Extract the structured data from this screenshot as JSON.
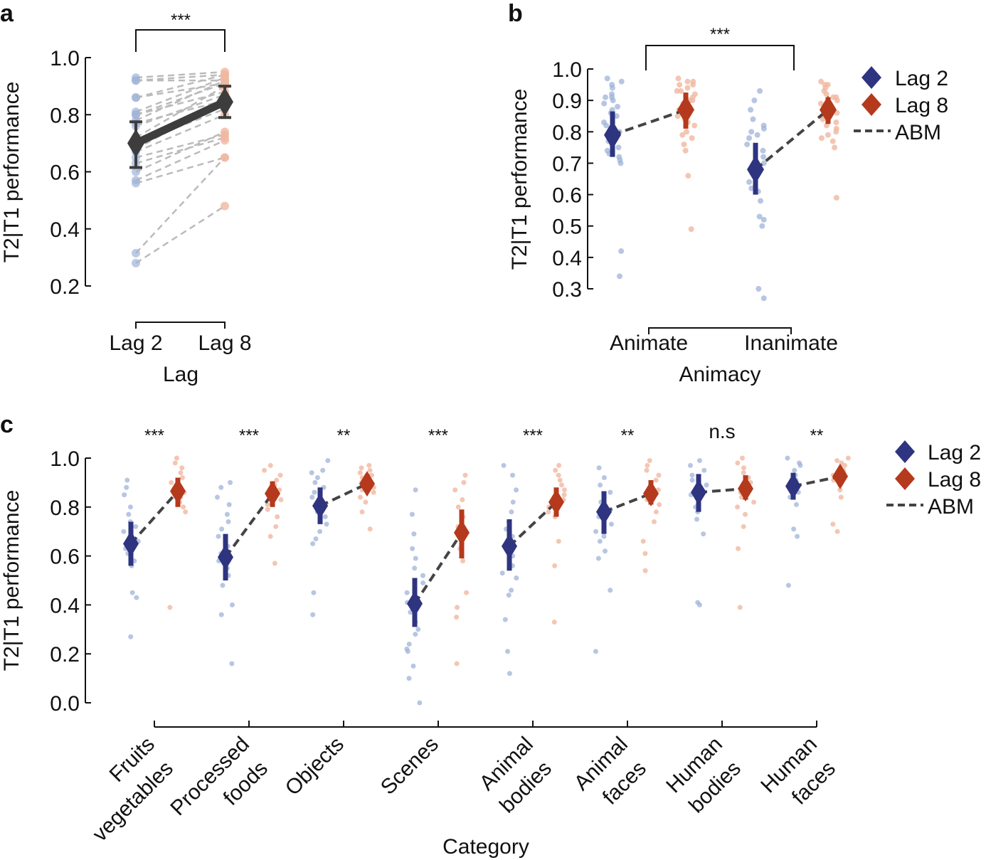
{
  "figure": {
    "width": 1386,
    "height": 1209
  },
  "colors": {
    "lag2": "#2e3480",
    "lag8": "#b5391c",
    "lag2_light": "#9fb3d8",
    "lag8_light": "#f0b8a0",
    "abm": "#444444",
    "avg": "#3d3d3d",
    "subject_line": "#bbbbbb"
  },
  "chart_data": [
    {
      "panel": "a",
      "type": "line",
      "ylabel": "T2|T1 performance",
      "xlabel": "Lag",
      "categories": [
        "Lag 2",
        "Lag 8"
      ],
      "ylim": [
        0.2,
        1.0
      ],
      "yticks": [
        0.2,
        0.4,
        0.6,
        0.8,
        1.0
      ],
      "ytick_labels": [
        "0.2",
        "0.4",
        "0.6",
        "0.8",
        "1.0"
      ],
      "significance": "***",
      "mean": {
        "values": [
          0.7,
          0.845
        ],
        "err_low": [
          0.615,
          0.79
        ],
        "err_high": [
          0.775,
          0.9
        ]
      },
      "subjects": [
        [
          0.93,
          0.95
        ],
        [
          0.92,
          0.94
        ],
        [
          0.92,
          0.92
        ],
        [
          0.86,
          0.94
        ],
        [
          0.86,
          0.91
        ],
        [
          0.81,
          0.93
        ],
        [
          0.8,
          0.91
        ],
        [
          0.8,
          0.88
        ],
        [
          0.78,
          0.92
        ],
        [
          0.77,
          0.85
        ],
        [
          0.76,
          0.87
        ],
        [
          0.72,
          0.9
        ],
        [
          0.7,
          0.82
        ],
        [
          0.68,
          0.85
        ],
        [
          0.67,
          0.8
        ],
        [
          0.65,
          0.73
        ],
        [
          0.63,
          0.72
        ],
        [
          0.6,
          0.74
        ],
        [
          0.57,
          0.71
        ],
        [
          0.56,
          0.65
        ],
        [
          0.315,
          0.65
        ],
        [
          0.28,
          0.48
        ]
      ]
    },
    {
      "panel": "b",
      "type": "scatter",
      "ylabel": "T2|T1 performance",
      "xlabel": "Animacy",
      "categories": [
        "Animate",
        "Inanimate"
      ],
      "ylim": [
        0.3,
        1.0
      ],
      "yticks": [
        0.3,
        0.4,
        0.5,
        0.6,
        0.7,
        0.8,
        0.9,
        1.0
      ],
      "ytick_labels": [
        "0.3",
        "0.4",
        "0.5",
        "0.6",
        "0.7",
        "0.8",
        "0.9",
        "1.0"
      ],
      "significance": "***",
      "legend": [
        "Lag 2",
        "Lag 8",
        "ABM"
      ],
      "series": [
        {
          "name": "Lag 2",
          "values": [
            0.79,
            0.68
          ],
          "err_low": [
            0.72,
            0.6
          ],
          "err_high": [
            0.865,
            0.765
          ]
        },
        {
          "name": "Lag 8",
          "values": [
            0.87,
            0.87
          ],
          "err_low": [
            0.81,
            0.825
          ],
          "err_high": [
            0.925,
            0.91
          ]
        }
      ],
      "abm": [
        [
          0.79,
          0.87
        ],
        [
          0.68,
          0.87
        ]
      ],
      "points_lag2": [
        [
          0.97,
          0.96,
          0.95,
          0.94,
          0.92,
          0.91,
          0.91,
          0.9,
          0.89,
          0.88,
          0.87,
          0.86,
          0.85,
          0.83,
          0.82,
          0.8,
          0.79,
          0.78,
          0.77,
          0.76,
          0.75,
          0.74,
          0.73,
          0.72,
          0.71,
          0.7,
          0.42,
          0.34
        ],
        [
          0.93,
          0.9,
          0.87,
          0.84,
          0.82,
          0.81,
          0.8,
          0.79,
          0.78,
          0.76,
          0.74,
          0.72,
          0.7,
          0.68,
          0.66,
          0.64,
          0.62,
          0.61,
          0.58,
          0.53,
          0.52,
          0.5,
          0.3,
          0.27
        ]
      ],
      "points_lag8": [
        [
          0.97,
          0.96,
          0.96,
          0.95,
          0.95,
          0.94,
          0.93,
          0.93,
          0.92,
          0.91,
          0.9,
          0.9,
          0.89,
          0.88,
          0.87,
          0.86,
          0.85,
          0.84,
          0.83,
          0.82,
          0.8,
          0.79,
          0.78,
          0.76,
          0.74,
          0.66,
          0.49
        ],
        [
          0.96,
          0.95,
          0.95,
          0.94,
          0.93,
          0.92,
          0.91,
          0.91,
          0.9,
          0.89,
          0.88,
          0.87,
          0.86,
          0.85,
          0.84,
          0.83,
          0.82,
          0.81,
          0.8,
          0.79,
          0.78,
          0.77,
          0.75,
          0.59
        ]
      ]
    },
    {
      "panel": "c",
      "type": "scatter",
      "ylabel": "T2|T1 performance",
      "xlabel": "Category",
      "ylim": [
        0.0,
        1.0
      ],
      "yticks": [
        0.0,
        0.2,
        0.4,
        0.6,
        0.8,
        1.0
      ],
      "ytick_labels": [
        "0.0",
        "0.2",
        "0.4",
        "0.6",
        "0.8",
        "1.0"
      ],
      "categories": [
        [
          "Fruits",
          "vegetables"
        ],
        [
          "Processed",
          "foods"
        ],
        [
          "Objects"
        ],
        [
          "Scenes"
        ],
        [
          "Animal",
          "bodies"
        ],
        [
          "Animal",
          "faces"
        ],
        [
          "Human",
          "bodies"
        ],
        [
          "Human",
          "faces"
        ]
      ],
      "significance": [
        "***",
        "***",
        "**",
        "***",
        "***",
        "**",
        "n.s",
        "**"
      ],
      "legend": [
        "Lag 2",
        "Lag 8",
        "ABM"
      ],
      "series": [
        {
          "name": "Lag 2",
          "values": [
            0.65,
            0.595,
            0.805,
            0.405,
            0.64,
            0.78,
            0.86,
            0.885
          ],
          "err_low": [
            0.56,
            0.5,
            0.73,
            0.31,
            0.54,
            0.69,
            0.78,
            0.83
          ],
          "err_high": [
            0.74,
            0.69,
            0.88,
            0.51,
            0.75,
            0.865,
            0.935,
            0.94
          ]
        },
        {
          "name": "Lag 8",
          "values": [
            0.865,
            0.855,
            0.895,
            0.695,
            0.82,
            0.855,
            0.875,
            0.925
          ],
          "err_low": [
            0.8,
            0.8,
            0.86,
            0.59,
            0.76,
            0.81,
            0.83,
            0.895
          ],
          "err_high": [
            0.92,
            0.905,
            0.935,
            0.79,
            0.88,
            0.91,
            0.93,
            0.96
          ]
        },
        {
          "name": "ABM",
          "lag2": [
            0.65,
            0.595,
            0.805,
            0.405,
            0.64,
            0.78,
            0.86,
            0.885
          ],
          "lag8": [
            0.865,
            0.855,
            0.895,
            0.695,
            0.82,
            0.855,
            0.875,
            0.925
          ]
        }
      ],
      "points_lag2": [
        [
          0.91,
          0.88,
          0.85,
          0.8,
          0.77,
          0.74,
          0.72,
          0.7,
          0.68,
          0.66,
          0.63,
          0.61,
          0.58,
          0.56,
          0.45,
          0.43,
          0.27
        ],
        [
          0.9,
          0.88,
          0.84,
          0.81,
          0.77,
          0.74,
          0.71,
          0.68,
          0.64,
          0.61,
          0.58,
          0.55,
          0.52,
          0.48,
          0.4,
          0.36,
          0.16
        ],
        [
          0.99,
          0.95,
          0.94,
          0.92,
          0.9,
          0.88,
          0.86,
          0.84,
          0.81,
          0.78,
          0.76,
          0.73,
          0.7,
          0.67,
          0.65,
          0.45,
          0.36
        ],
        [
          0.87,
          0.77,
          0.69,
          0.63,
          0.59,
          0.55,
          0.52,
          0.49,
          0.45,
          0.41,
          0.37,
          0.33,
          0.3,
          0.28,
          0.24,
          0.22,
          0.21,
          0.15,
          0.1,
          0.0
        ],
        [
          0.97,
          0.93,
          0.87,
          0.82,
          0.78,
          0.74,
          0.71,
          0.68,
          0.64,
          0.6,
          0.56,
          0.53,
          0.51,
          0.46,
          0.44,
          0.34,
          0.21,
          0.12
        ],
        [
          0.96,
          0.92,
          0.89,
          0.86,
          0.82,
          0.79,
          0.76,
          0.73,
          0.7,
          0.68,
          0.66,
          0.62,
          0.59,
          0.46,
          0.21
        ],
        [
          0.99,
          0.97,
          0.95,
          0.93,
          0.91,
          0.89,
          0.87,
          0.85,
          0.83,
          0.8,
          0.78,
          0.75,
          0.69,
          0.41,
          0.4
        ],
        [
          1.0,
          0.98,
          0.97,
          0.95,
          0.93,
          0.91,
          0.9,
          0.88,
          0.86,
          0.84,
          0.81,
          0.71,
          0.68,
          0.48
        ]
      ],
      "points_lag8": [
        [
          1.0,
          0.98,
          0.96,
          0.94,
          0.92,
          0.9,
          0.88,
          0.86,
          0.84,
          0.82,
          0.8,
          0.78,
          0.39
        ],
        [
          0.97,
          0.95,
          0.93,
          0.91,
          0.89,
          0.87,
          0.85,
          0.83,
          0.81,
          0.79,
          0.76,
          0.72,
          0.68,
          0.57
        ],
        [
          0.97,
          0.96,
          0.95,
          0.94,
          0.93,
          0.92,
          0.91,
          0.9,
          0.89,
          0.88,
          0.87,
          0.86,
          0.84,
          0.82,
          0.78,
          0.71
        ],
        [
          0.93,
          0.9,
          0.87,
          0.83,
          0.8,
          0.76,
          0.72,
          0.68,
          0.63,
          0.58,
          0.45,
          0.39,
          0.35,
          0.16
        ],
        [
          0.97,
          0.95,
          0.93,
          0.91,
          0.89,
          0.87,
          0.85,
          0.83,
          0.8,
          0.78,
          0.76,
          0.66,
          0.56,
          0.33
        ],
        [
          0.99,
          0.97,
          0.95,
          0.93,
          0.91,
          0.89,
          0.87,
          0.85,
          0.83,
          0.81,
          0.78,
          0.74,
          0.66,
          0.61,
          0.54
        ],
        [
          1.0,
          0.98,
          0.96,
          0.94,
          0.92,
          0.9,
          0.88,
          0.86,
          0.84,
          0.82,
          0.8,
          0.77,
          0.72,
          0.63,
          0.39
        ],
        [
          1.0,
          0.99,
          0.98,
          0.97,
          0.96,
          0.95,
          0.94,
          0.93,
          0.92,
          0.91,
          0.9,
          0.89,
          0.87,
          0.84,
          0.73,
          0.7
        ]
      ]
    }
  ],
  "panels": {
    "a": {
      "label": "a",
      "ylabel": "T2|T1 performance",
      "xlabel": "Lag",
      "sig": "***"
    },
    "b": {
      "label": "b",
      "ylabel": "T2|T1 performance",
      "xlabel": "Animacy",
      "sig": "***"
    },
    "c": {
      "label": "c",
      "ylabel": "T2|T1 performance",
      "xlabel": "Category"
    }
  },
  "legend": {
    "lag2": "Lag 2",
    "lag8": "Lag 8",
    "abm": "ABM"
  }
}
